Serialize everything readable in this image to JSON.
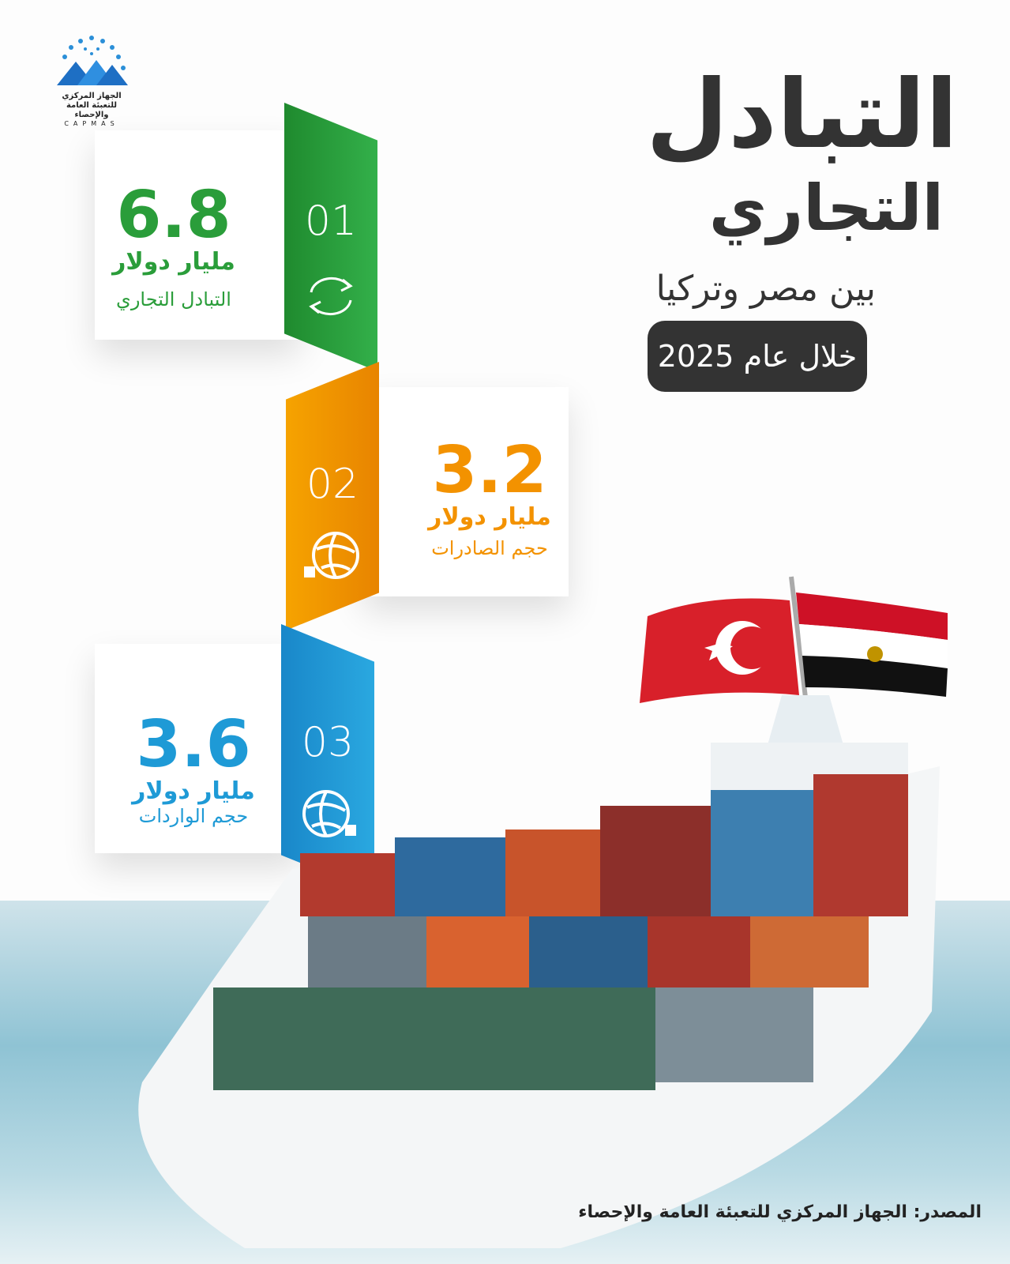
{
  "logo": {
    "name_ar": "الجهاز المركزي للتعبئة العامة والإحصاء",
    "name_en": "CAPMAS"
  },
  "header": {
    "title_line1": "التبادل",
    "title_line2": "التجاري",
    "subtitle": "بين مصر وتركيا",
    "period": "خلال عام 2025"
  },
  "items": [
    {
      "number": "01",
      "value": "6.8",
      "unit": "مليار دولار",
      "label": "التبادل التجاري",
      "icon": "exchange-arrows-icon",
      "color": "#2a9d3a"
    },
    {
      "number": "02",
      "value": "3.2",
      "unit": "مليار دولار",
      "label": "حجم الصادرات",
      "icon": "globe-export-icon",
      "color": "#f39200"
    },
    {
      "number": "03",
      "value": "3.6",
      "unit": "مليار دولار",
      "label": "حجم الواردات",
      "icon": "globe-import-icon",
      "color": "#1e9ad6"
    }
  ],
  "source": "المصدر: الجهاز المركزي للتعبئة العامة والإحصاء"
}
